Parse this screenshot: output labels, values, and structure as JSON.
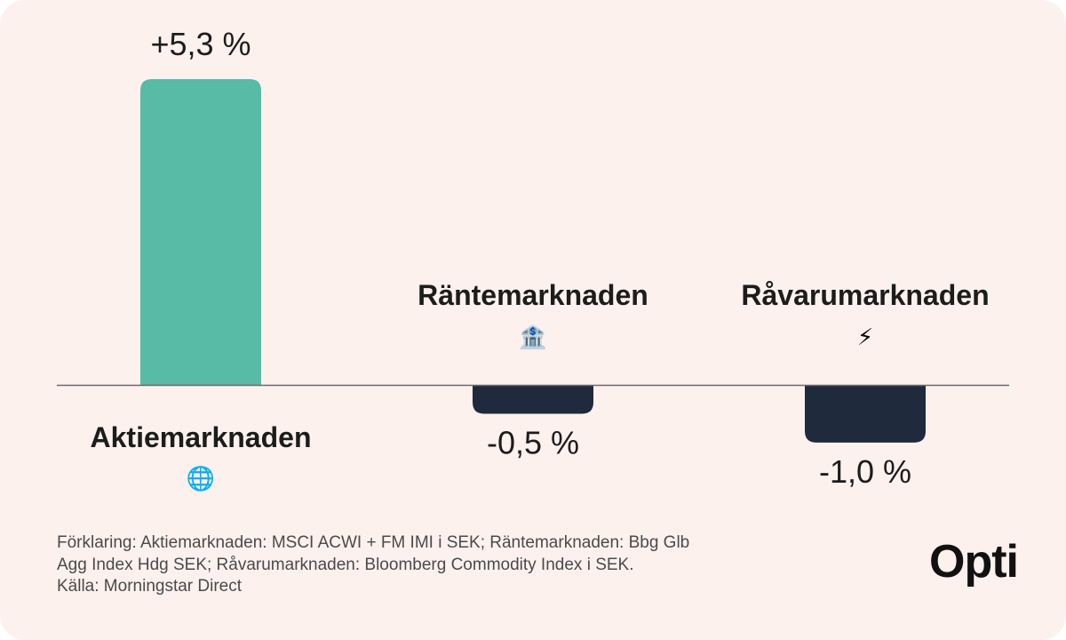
{
  "colors": {
    "background": "#fdf1ee",
    "positive_bar": "#57bba6",
    "negative_bar": "#1f2a3c",
    "baseline": "#6b6b6b",
    "text": "#1c1c1c"
  },
  "chart_data": {
    "type": "bar",
    "categories": [
      "Aktiemarknaden",
      "Räntemarknaden",
      "Råvarumarknaden"
    ],
    "values": [
      5.3,
      -0.5,
      -1.0
    ],
    "value_labels": [
      "+5,3 %",
      "-0,5 %",
      "-1,0 %"
    ],
    "icons": [
      "globe-icon",
      "bank-icon",
      "lightning-icon"
    ],
    "icon_glyphs": [
      "🌐",
      "🏦",
      "⚡"
    ],
    "ylim": [
      -1.0,
      5.3
    ],
    "grid": false,
    "legend": "none"
  },
  "footnote": {
    "line1": "Förklaring: Aktiemarknaden: MSCI ACWI + FM IMI i SEK; Räntemarknaden: Bbg Glb",
    "line2": "Agg Index Hdg SEK; Råvarumarknaden: Bloomberg Commodity Index i SEK.",
    "line3": "Källa: Morningstar Direct"
  },
  "brand": {
    "logo_text": "Opti"
  }
}
